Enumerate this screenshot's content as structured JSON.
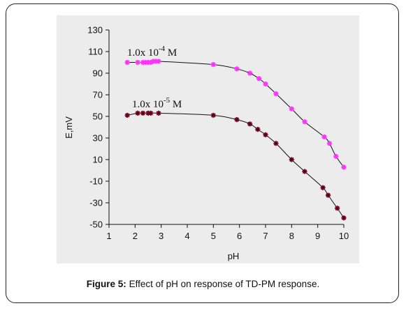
{
  "caption": {
    "prefix": "Figure 5:",
    "text": " Effect of pH on response of TD-PM  response."
  },
  "chart_data": {
    "type": "line",
    "title": "",
    "xlabel": "pH",
    "ylabel": "E,mV",
    "xlim": [
      1,
      10
    ],
    "ylim": [
      -50,
      130
    ],
    "xticks": [
      1,
      2,
      3,
      4,
      5,
      6,
      7,
      8,
      9,
      10
    ],
    "yticks": [
      130,
      110,
      90,
      70,
      50,
      30,
      10,
      -10,
      -30,
      -50
    ],
    "grid": false,
    "series": [
      {
        "name": "1.0x 10-4 M",
        "label_base": "1.0x 10",
        "label_exp": "-4",
        "label_unit": " M",
        "color": "#ff33ff",
        "marker": "asterisk",
        "x": [
          1.7,
          2.1,
          2.3,
          2.4,
          2.5,
          2.6,
          2.7,
          2.8,
          2.9,
          5.0,
          5.9,
          6.4,
          6.75,
          7.0,
          7.4,
          8.0,
          8.5,
          9.25,
          9.45,
          9.7,
          10.0
        ],
        "y": [
          100,
          100,
          100,
          100,
          100,
          100,
          101,
          101,
          101,
          98,
          94,
          90,
          85,
          80,
          71,
          57,
          45,
          31,
          25,
          13,
          3
        ]
      },
      {
        "name": "1.0x 10-5 M",
        "label_base": "1.0x 10",
        "label_exp": "-5",
        "label_unit": " M",
        "color": "#7a0020",
        "marker": "asterisk",
        "x": [
          1.7,
          2.1,
          2.3,
          2.5,
          2.6,
          2.9,
          5.0,
          5.9,
          6.4,
          6.7,
          7.0,
          7.4,
          8.0,
          8.5,
          9.2,
          9.4,
          9.75,
          10.0
        ],
        "y": [
          51,
          53,
          53,
          53,
          53,
          53,
          51,
          47,
          43,
          38,
          33,
          25,
          10,
          -1,
          -16,
          -23,
          -35,
          -44
        ]
      }
    ]
  }
}
